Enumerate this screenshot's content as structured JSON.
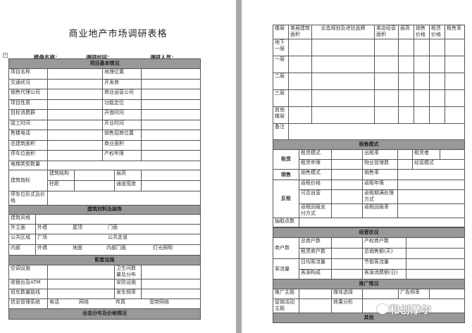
{
  "left": {
    "title": "商业地产市场调研表格",
    "meta": {
      "name": "楼盘名称：",
      "time": "调研时间：",
      "person": "调研人员："
    },
    "basic": {
      "title": "项目基本情况",
      "rows": [
        [
          "项目名称",
          "地理位置"
        ],
        [
          "交通状况",
          "开发商"
        ],
        [
          "销售代理公司",
          "商业运营公司"
        ],
        [
          "项目性质",
          "功能定位"
        ],
        [
          "目标消费群",
          "开盘时间"
        ],
        [
          "竣工时间",
          "开业时间"
        ],
        [
          "售楼电话",
          "销售招商位置"
        ],
        [
          "总建筑面积",
          "商业面积"
        ],
        [
          "停车位面积",
          "产权年限"
        ]
      ],
      "elevator": "电梯类型数量",
      "building_index": {
        "label": "建筑指标",
        "structure": "建筑结构",
        "height": "层高",
        "column": "柱距",
        "aisle": "通道宽度"
      },
      "parking": "停车位形式及价格"
    },
    "materials": {
      "title": "建筑材料及装饰",
      "style": "建筑风格",
      "facade": [
        "外立面",
        "外墙",
        "屋顶",
        "门面"
      ],
      "public": [
        "公共区域",
        "广场",
        "公共走道"
      ],
      "interior": [
        "内部",
        "外墙",
        "地面",
        "内部门面",
        "灯光照明"
      ]
    },
    "facilities": {
      "title": "配套设施",
      "rows": [
        [
          "空调设施",
          "卫生间数量及分布"
        ],
        [
          "收银台及ATM",
          "安防设施"
        ],
        [
          "班车数量路线",
          "发车频率"
        ]
      ],
      "info": [
        "信息管理系统",
        "电话",
        "网络",
        "传真",
        "宽带网络"
      ]
    },
    "business": {
      "title": "业态分布及价格情况"
    }
  },
  "right": {
    "headers": [
      "楼层",
      "单层建筑面积",
      "业态规划及进驻品牌",
      "单店经营面积",
      "层高",
      "销售价格",
      "租赁价格",
      "租售率"
    ],
    "floors": [
      "地下一层",
      "一层",
      "二层",
      "三层",
      "其他楼层"
    ],
    "remark": "备注",
    "lease": {
      "title": "租售模式",
      "rent": "租赁",
      "rent_mode": "租赁模式",
      "rent_rate": "出租率",
      "tenant": "租赁者",
      "rent_term": "租赁年限",
      "property_fee": "物业管理费",
      "operation_mode": "经营模式",
      "sale": "销售",
      "sale_mode": "销售模式",
      "sale_rate": "销售率",
      "leaseback": "反租",
      "lb_price": "返租价格",
      "lb_term": "返租年限",
      "self_operate": "可否自营",
      "lb_expiry": "返租期满处理方式",
      "lb_payment": "返租回报支付方式",
      "lb_return": "返租回报率",
      "commission": "抽取点数"
    },
    "operation": {
      "title": "经营状况",
      "merchants": "商户数",
      "total_merchants": "总商户数",
      "owner_merchants": "产权商户数",
      "rent_merchants": "租赁商户数",
      "total_sales": "总销售额(天)",
      "traffic": "客流量",
      "daily_traffic": "日均客流量",
      "holiday_traffic": "节假客流量",
      "customer_mix": "客源构成",
      "customer_spend": "客源消费额(日)"
    },
    "promotion": {
      "title": "推广情况",
      "theme": "推广主题",
      "media": "媒体选择",
      "ad_freq": "广告频率",
      "promo_theme": "促销活动主题",
      "effect": "效果分析"
    },
    "other": {
      "title": "其他"
    }
  },
  "watermark": "和创摩尔"
}
